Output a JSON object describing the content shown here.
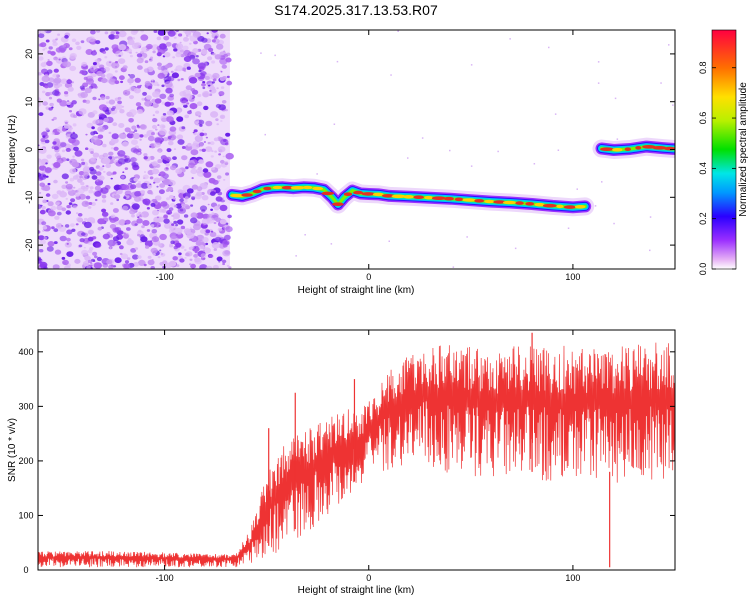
{
  "figure": {
    "title": "S174.2025.317.13.53.R07"
  },
  "colors": {
    "snr_line": "#ee3333",
    "axis": "#000000",
    "spectrum_ridge": "#e03020",
    "noise": "#7a2cf0"
  },
  "chart_data": [
    {
      "type": "heatmap",
      "name": "spectrogram",
      "xlabel": "Height of straight line (km)",
      "ylabel": "Frequency (Hz)",
      "xlim": [
        -162,
        150
      ],
      "ylim": [
        -25,
        25
      ],
      "xticks": [
        -100,
        0,
        100
      ],
      "yticks": [
        -20,
        -10,
        0,
        10,
        20
      ],
      "xtick_labels": [
        "-100",
        "0",
        "100"
      ],
      "ytick_labels": [
        "-20",
        "-10",
        "0",
        "10",
        "20"
      ],
      "noise_region_x": [
        -162,
        -68
      ],
      "signal_segments": [
        {
          "name": "main-ridge",
          "x": [
            -67,
            -62,
            -57,
            -52,
            -47,
            -42,
            -37,
            -32,
            -27,
            -22,
            -18,
            -15,
            -12,
            -8,
            -4,
            0,
            5,
            10,
            20,
            30,
            40,
            50,
            60,
            70,
            80,
            90,
            100,
            106
          ],
          "y": [
            -9.5,
            -9.8,
            -9.2,
            -8.3,
            -8.0,
            -7.9,
            -8.1,
            -7.9,
            -8.0,
            -8.4,
            -10.0,
            -11.5,
            -10.0,
            -8.6,
            -9.2,
            -9.3,
            -9.4,
            -9.7,
            -9.9,
            -10.1,
            -10.3,
            -10.6,
            -10.9,
            -11.1,
            -11.4,
            -11.8,
            -12.1,
            -11.9
          ]
        },
        {
          "name": "upper-ridge",
          "x": [
            114,
            120,
            128,
            136,
            144,
            150
          ],
          "y": [
            0.2,
            -0.1,
            0.1,
            0.6,
            0.3,
            0.1
          ]
        }
      ],
      "colorbar": {
        "label": "Normalized spectral amplitude",
        "range": [
          0,
          0.95
        ],
        "ticks": [
          0.0,
          0.2,
          0.4,
          0.6,
          0.8
        ],
        "tick_labels": [
          "0.0",
          "0.2",
          "0.4",
          "0.6",
          "0.8"
        ]
      }
    },
    {
      "type": "line",
      "name": "snr",
      "xlabel": "Height of straight line (km)",
      "ylabel": "SNR (10 * v/v)",
      "xlim": [
        -162,
        150
      ],
      "ylim": [
        0,
        440
      ],
      "xticks": [
        -100,
        0,
        100
      ],
      "yticks": [
        0,
        100,
        200,
        300,
        400
      ],
      "xtick_labels": [
        "-100",
        "0",
        "100"
      ],
      "ytick_labels": [
        "0",
        "100",
        "200",
        "300",
        "400"
      ],
      "envelope": {
        "x": [
          -162,
          -120,
          -80,
          -65,
          -58,
          -52,
          -45,
          -38,
          -30,
          -20,
          -10,
          -5,
          0,
          10,
          20,
          30,
          40,
          60,
          80,
          100,
          120,
          150
        ],
        "upper": [
          35,
          35,
          30,
          30,
          75,
          150,
          220,
          240,
          260,
          280,
          300,
          290,
          310,
          370,
          400,
          420,
          415,
          405,
          415,
          410,
          410,
          420
        ],
        "lower": [
          5,
          5,
          5,
          5,
          10,
          20,
          30,
          50,
          70,
          100,
          130,
          150,
          170,
          185,
          190,
          180,
          175,
          170,
          160,
          160,
          160,
          160
        ]
      },
      "spikes": [
        {
          "x": -49,
          "y": 260
        },
        {
          "x": -36,
          "y": 325
        },
        {
          "x": -7,
          "y": 350
        },
        {
          "x": 80,
          "y": 435
        },
        {
          "x": 118,
          "y": 5
        }
      ]
    }
  ]
}
